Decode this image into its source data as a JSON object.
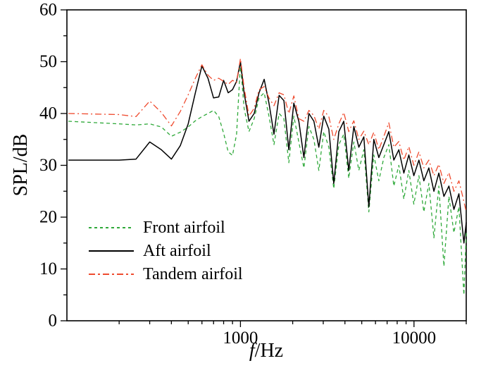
{
  "figure": {
    "background": "#ffffff",
    "ylabel": "SPL/dB",
    "xlabel_italic": "f",
    "xlabel_rest": "/Hz"
  },
  "chart_data": {
    "type": "line",
    "x_scale": "log",
    "xlim": [
      100,
      20000
    ],
    "ylim": [
      0,
      60
    ],
    "xlabel": "f/Hz",
    "ylabel": "SPL/dB",
    "grid": false,
    "legend_position": "lower-left",
    "y_major_ticks": [
      0,
      10,
      20,
      30,
      40,
      50,
      60
    ],
    "y_minor_step": 5,
    "x_major_ticks": [
      {
        "value": 1000,
        "label": "1000"
      },
      {
        "value": 10000,
        "label": "10000"
      }
    ],
    "x_minor_ticks": [
      200,
      300,
      400,
      500,
      600,
      700,
      800,
      900,
      2000,
      3000,
      4000,
      5000,
      6000,
      7000,
      8000,
      9000,
      20000
    ],
    "x": [
      102,
      200,
      250,
      300,
      350,
      400,
      450,
      500,
      550,
      600,
      650,
      700,
      750,
      800,
      850,
      900,
      950,
      1000,
      1050,
      1120,
      1200,
      1280,
      1370,
      1460,
      1560,
      1670,
      1780,
      1900,
      2030,
      2170,
      2320,
      2480,
      2650,
      2830,
      3020,
      3230,
      3450,
      3690,
      3940,
      4210,
      4500,
      4810,
      5140,
      5490,
      5870,
      6270,
      6700,
      7160,
      7650,
      8180,
      8740,
      9340,
      9980,
      10670,
      11400,
      12180,
      13020,
      13910,
      14870,
      15890,
      16980,
      18150,
      19400,
      20000
    ],
    "series": [
      {
        "name": "Front airfoil",
        "color": "#2fa93a",
        "style": "dashed",
        "values": [
          38.5,
          38.0,
          37.8,
          38.0,
          37.4,
          35.6,
          36.4,
          37.4,
          38.6,
          39.4,
          40.0,
          40.6,
          39.4,
          36.2,
          32.6,
          31.9,
          36.0,
          49.6,
          41.0,
          36.5,
          39.0,
          43.0,
          44.0,
          39.5,
          34.0,
          40.0,
          39.0,
          30.5,
          39.5,
          34.5,
          29.5,
          37.5,
          35.0,
          29.0,
          36.5,
          33.5,
          25.5,
          34.0,
          36.0,
          27.5,
          34.5,
          29.0,
          33.0,
          21.0,
          32.0,
          27.0,
          31.5,
          34.0,
          26.0,
          30.0,
          23.5,
          29.0,
          22.5,
          28.0,
          21.0,
          26.5,
          16.0,
          26.0,
          10.5,
          24.0,
          17.0,
          22.0,
          5.0,
          17.0
        ]
      },
      {
        "name": "Aft airfoil",
        "color": "#000000",
        "style": "solid",
        "values": [
          31.0,
          31.0,
          31.2,
          34.5,
          33.0,
          31.2,
          33.8,
          38.0,
          44.0,
          49.2,
          46.8,
          43.0,
          43.2,
          46.4,
          44.0,
          44.6,
          46.2,
          50.0,
          44.0,
          38.5,
          40.0,
          44.0,
          46.6,
          42.0,
          36.0,
          43.5,
          42.5,
          33.0,
          42.0,
          38.5,
          31.5,
          40.0,
          38.5,
          33.5,
          39.5,
          37.0,
          26.5,
          36.5,
          38.5,
          29.0,
          37.5,
          33.5,
          35.5,
          22.0,
          35.0,
          31.5,
          34.0,
          36.5,
          31.0,
          33.0,
          28.5,
          32.0,
          28.0,
          31.0,
          27.0,
          29.5,
          25.0,
          28.5,
          24.0,
          26.0,
          21.5,
          24.5,
          15.0,
          19.0
        ]
      },
      {
        "name": "Tandem airfoil",
        "color": "#ef4b2f",
        "style": "dash-dot",
        "values": [
          40.0,
          39.8,
          39.4,
          42.4,
          40.2,
          37.6,
          40.4,
          43.6,
          46.8,
          49.4,
          47.4,
          46.4,
          46.8,
          46.2,
          45.6,
          46.4,
          46.0,
          50.6,
          45.0,
          39.5,
          41.0,
          44.6,
          45.2,
          43.0,
          41.5,
          44.0,
          43.6,
          40.0,
          43.4,
          39.0,
          38.5,
          40.6,
          39.6,
          37.0,
          40.6,
          39.4,
          35.0,
          38.0,
          40.2,
          36.5,
          38.6,
          35.0,
          36.6,
          34.0,
          36.4,
          33.0,
          35.6,
          38.2,
          33.5,
          34.6,
          31.0,
          33.6,
          30.0,
          32.6,
          29.5,
          31.0,
          28.0,
          30.2,
          26.5,
          28.6,
          25.0,
          27.0,
          23.0,
          21.0
        ]
      }
    ]
  }
}
